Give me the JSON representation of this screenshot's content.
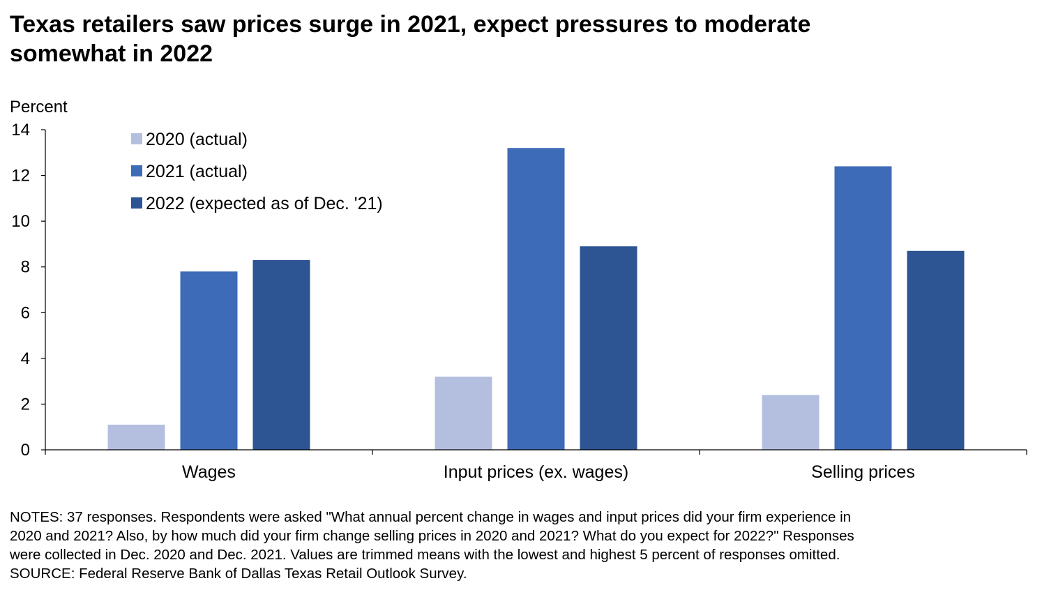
{
  "title_lines": [
    "Texas retailers saw prices surge in 2021, expect pressures to moderate",
    "somewhat in 2022"
  ],
  "chart_data": {
    "type": "bar",
    "title": "Texas retailers saw prices surge in 2021, expect pressures to moderate somewhat in 2022",
    "ylabel": "Percent",
    "xlabel": "",
    "ylim": [
      0,
      14
    ],
    "yticks": [
      0,
      2,
      4,
      6,
      8,
      10,
      12,
      14
    ],
    "grid": false,
    "legend_position": "top-left",
    "categories": [
      "Wages",
      "Input prices (ex. wages)",
      "Selling prices"
    ],
    "series": [
      {
        "name": "2020 (actual)",
        "color": "#b4bfe0",
        "values": [
          1.1,
          3.2,
          2.4
        ]
      },
      {
        "name": "2021 (actual)",
        "color": "#3e6bb8",
        "values": [
          7.8,
          13.2,
          12.4
        ]
      },
      {
        "name": "2022 (expected as of Dec. '21)",
        "color": "#2d5493",
        "values": [
          8.3,
          8.9,
          8.7
        ]
      }
    ]
  },
  "notes_lines": [
    "NOTES: 37 responses. Respondents were asked \"What annual percent change in wages and input prices did your firm experience in",
    "2020 and 2021? Also, by how much did your firm change selling prices in 2020 and 2021? What do you expect for 2022?\" Responses",
    "were collected in Dec. 2020 and Dec. 2021. Values are trimmed means with the lowest and highest 5 percent of responses omitted.",
    "SOURCE: Federal Reserve Bank of Dallas Texas Retail Outlook Survey."
  ]
}
